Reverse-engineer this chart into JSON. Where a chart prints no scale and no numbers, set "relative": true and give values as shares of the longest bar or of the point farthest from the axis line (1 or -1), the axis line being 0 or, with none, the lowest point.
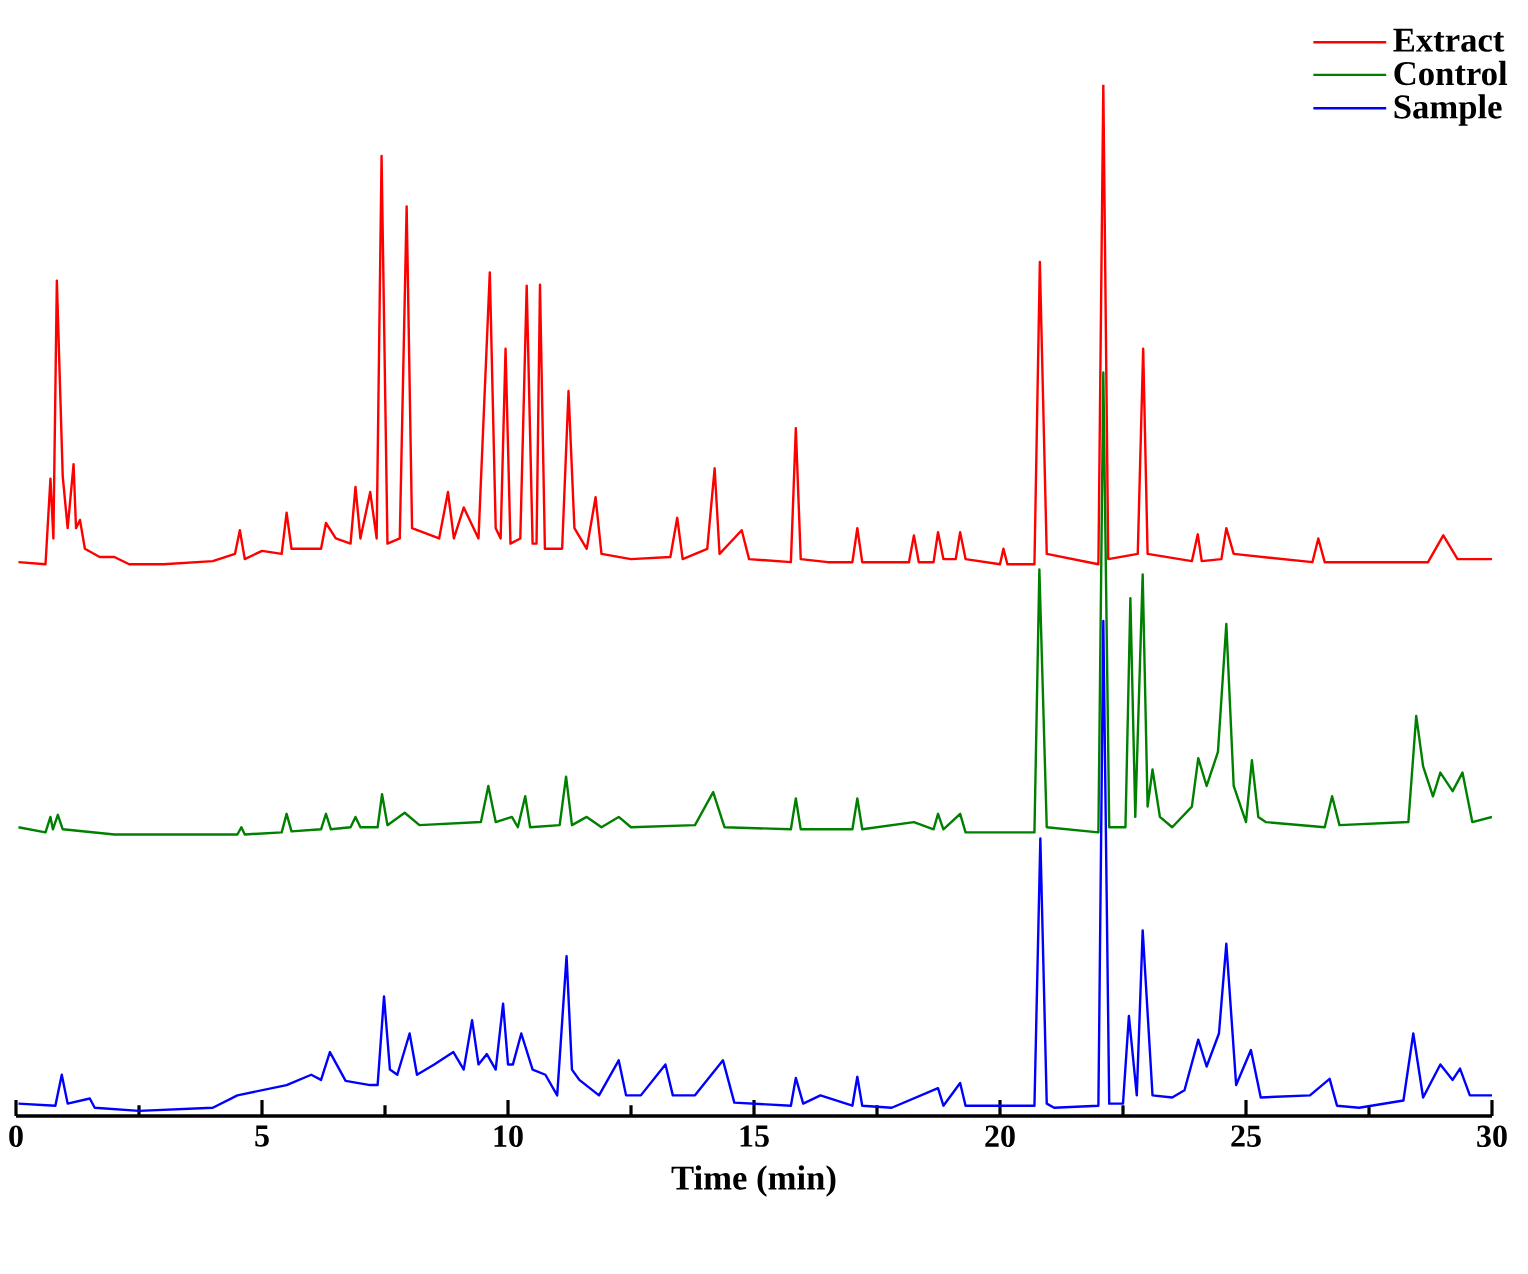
{
  "chart_data": {
    "type": "line",
    "relative": true,
    "xlabel": "Time (min)",
    "xlim": [
      0,
      30
    ],
    "xticks": [
      0,
      5,
      10,
      15,
      20,
      25,
      30
    ],
    "legend": "top right",
    "grid": false,
    "marker": "none",
    "line_style": "solid",
    "series": [
      {
        "name": "Extract",
        "color": "#ff0000",
        "x": [
          0.05,
          0.6,
          0.7,
          0.76,
          0.83,
          0.95,
          1.05,
          1.17,
          1.22,
          1.3,
          1.4,
          1.7,
          2.0,
          2.3,
          3.0,
          4.0,
          4.45,
          4.55,
          4.65,
          5.0,
          5.4,
          5.5,
          5.6,
          6.2,
          6.3,
          6.5,
          6.8,
          6.9,
          7.0,
          7.2,
          7.33,
          7.43,
          7.55,
          7.8,
          7.94,
          8.05,
          8.6,
          8.78,
          8.9,
          9.1,
          9.4,
          9.63,
          9.75,
          9.85,
          9.95,
          10.05,
          10.25,
          10.38,
          10.5,
          10.58,
          10.65,
          10.75,
          11.1,
          11.23,
          11.35,
          11.6,
          11.78,
          11.9,
          12.5,
          13.3,
          13.44,
          13.55,
          14.05,
          14.2,
          14.3,
          14.75,
          14.9,
          15.75,
          15.85,
          15.95,
          16.5,
          17.0,
          17.1,
          17.2,
          18.15,
          18.25,
          18.35,
          18.65,
          18.74,
          18.85,
          19.1,
          19.19,
          19.3,
          20.0,
          20.07,
          20.15,
          20.7,
          20.81,
          20.95,
          22.0,
          22.1,
          22.2,
          22.8,
          22.91,
          23.0,
          23.9,
          24.02,
          24.1,
          24.5,
          24.6,
          24.75,
          26.35,
          26.47,
          26.6,
          28.7,
          29.01,
          29.3,
          30.0
        ],
        "values": [
          0.537,
          0.535,
          0.618,
          0.56,
          0.81,
          0.62,
          0.57,
          0.632,
          0.57,
          0.578,
          0.55,
          0.542,
          0.542,
          0.535,
          0.535,
          0.538,
          0.545,
          0.568,
          0.54,
          0.548,
          0.545,
          0.585,
          0.55,
          0.55,
          0.575,
          0.56,
          0.555,
          0.61,
          0.56,
          0.605,
          0.56,
          0.931,
          0.555,
          0.56,
          0.882,
          0.57,
          0.56,
          0.605,
          0.56,
          0.59,
          0.56,
          0.818,
          0.57,
          0.56,
          0.744,
          0.555,
          0.56,
          0.805,
          0.555,
          0.555,
          0.806,
          0.55,
          0.55,
          0.703,
          0.57,
          0.55,
          0.6,
          0.545,
          0.54,
          0.542,
          0.58,
          0.54,
          0.55,
          0.628,
          0.545,
          0.568,
          0.54,
          0.537,
          0.667,
          0.54,
          0.537,
          0.537,
          0.57,
          0.537,
          0.537,
          0.563,
          0.537,
          0.537,
          0.566,
          0.54,
          0.54,
          0.566,
          0.54,
          0.535,
          0.55,
          0.535,
          0.535,
          0.828,
          0.545,
          0.535,
          1,
          0.54,
          0.545,
          0.744,
          0.545,
          0.538,
          0.564,
          0.538,
          0.54,
          0.57,
          0.545,
          0.537,
          0.56,
          0.537,
          0.537,
          0.563,
          0.54,
          0.54
        ]
      },
      {
        "name": "Control",
        "color": "#008000",
        "x": [
          0.05,
          0.6,
          0.7,
          0.75,
          0.85,
          0.95,
          2,
          4.5,
          4.58,
          4.65,
          5.4,
          5.5,
          5.6,
          6.2,
          6.3,
          6.4,
          6.8,
          6.9,
          7.0,
          7.35,
          7.44,
          7.55,
          7.9,
          8.2,
          9.45,
          9.6,
          9.75,
          10.08,
          10.2,
          10.35,
          10.45,
          11.05,
          11.18,
          11.3,
          11.6,
          11.9,
          12.25,
          12.5,
          13.8,
          14.17,
          14.4,
          15.75,
          15.85,
          15.95,
          17.0,
          17.1,
          17.2,
          18.25,
          18.65,
          18.74,
          18.85,
          19.19,
          19.3,
          20.7,
          20.8,
          20.95,
          22.0,
          22.1,
          22.22,
          22.55,
          22.65,
          22.75,
          22.9,
          23.0,
          23.1,
          23.25,
          23.5,
          23.9,
          24.03,
          24.2,
          24.43,
          24.6,
          24.75,
          25.0,
          25.12,
          25.25,
          25.4,
          26.6,
          26.75,
          26.9,
          28.3,
          28.46,
          28.6,
          28.8,
          28.95,
          29.2,
          29.4,
          29.6,
          30.0
        ],
        "values": [
          0.28,
          0.275,
          0.29,
          0.278,
          0.292,
          0.278,
          0.273,
          0.273,
          0.28,
          0.273,
          0.275,
          0.293,
          0.276,
          0.278,
          0.293,
          0.278,
          0.28,
          0.29,
          0.28,
          0.28,
          0.312,
          0.282,
          0.294,
          0.282,
          0.285,
          0.32,
          0.285,
          0.29,
          0.28,
          0.31,
          0.28,
          0.282,
          0.329,
          0.282,
          0.29,
          0.28,
          0.29,
          0.28,
          0.282,
          0.314,
          0.28,
          0.278,
          0.308,
          0.278,
          0.278,
          0.308,
          0.278,
          0.285,
          0.278,
          0.293,
          0.278,
          0.293,
          0.275,
          0.275,
          0.53,
          0.28,
          0.275,
          0.721,
          0.28,
          0.28,
          0.502,
          0.29,
          0.525,
          0.3,
          0.336,
          0.29,
          0.28,
          0.3,
          0.347,
          0.32,
          0.353,
          0.477,
          0.32,
          0.285,
          0.345,
          0.29,
          0.285,
          0.28,
          0.31,
          0.282,
          0.285,
          0.388,
          0.339,
          0.31,
          0.333,
          0.315,
          0.333,
          0.285,
          0.29
        ]
      },
      {
        "name": "Sample",
        "color": "#0000ff",
        "x": [
          0.05,
          0.8,
          0.93,
          1.05,
          1.5,
          1.6,
          2.5,
          4.0,
          4.5,
          5.5,
          6.0,
          6.2,
          6.38,
          6.7,
          7.2,
          7.35,
          7.48,
          7.6,
          7.75,
          8.0,
          8.15,
          8.5,
          8.89,
          9.1,
          9.27,
          9.4,
          9.57,
          9.75,
          9.9,
          10.0,
          10.1,
          10.27,
          10.5,
          10.76,
          11.0,
          11.19,
          11.3,
          11.45,
          11.85,
          12.25,
          12.4,
          12.7,
          13.2,
          13.35,
          13.8,
          14.37,
          14.6,
          15.75,
          15.85,
          16.0,
          16.35,
          17.0,
          17.1,
          17.2,
          17.8,
          18.74,
          18.85,
          19.19,
          19.3,
          20.07,
          20.7,
          20.82,
          20.95,
          21.1,
          22.0,
          22.1,
          22.22,
          22.5,
          22.62,
          22.78,
          22.9,
          23.1,
          23.5,
          23.75,
          24.03,
          24.2,
          24.45,
          24.6,
          24.8,
          25.1,
          25.3,
          26.3,
          26.7,
          26.85,
          27.3,
          28.2,
          28.4,
          28.6,
          28.95,
          29.2,
          29.35,
          29.55,
          30.0
        ],
        "values": [
          0.012,
          0.01,
          0.04,
          0.012,
          0.017,
          0.008,
          0.005,
          0.008,
          0.02,
          0.03,
          0.04,
          0.035,
          0.062,
          0.034,
          0.03,
          0.03,
          0.116,
          0.045,
          0.04,
          0.08,
          0.04,
          0.05,
          0.062,
          0.045,
          0.093,
          0.05,
          0.06,
          0.045,
          0.109,
          0.05,
          0.05,
          0.08,
          0.045,
          0.04,
          0.02,
          0.155,
          0.045,
          0.035,
          0.02,
          0.054,
          0.02,
          0.02,
          0.05,
          0.02,
          0.02,
          0.054,
          0.013,
          0.01,
          0.037,
          0.012,
          0.02,
          0.01,
          0.038,
          0.01,
          0.008,
          0.027,
          0.01,
          0.032,
          0.01,
          0.01,
          0.01,
          0.269,
          0.012,
          0.008,
          0.01,
          0.48,
          0.012,
          0.012,
          0.097,
          0.02,
          0.18,
          0.02,
          0.018,
          0.025,
          0.074,
          0.048,
          0.08,
          0.167,
          0.03,
          0.064,
          0.018,
          0.02,
          0.036,
          0.01,
          0.008,
          0.015,
          0.08,
          0.018,
          0.05,
          0.035,
          0.046,
          0.02,
          0.02
        ]
      }
    ]
  }
}
